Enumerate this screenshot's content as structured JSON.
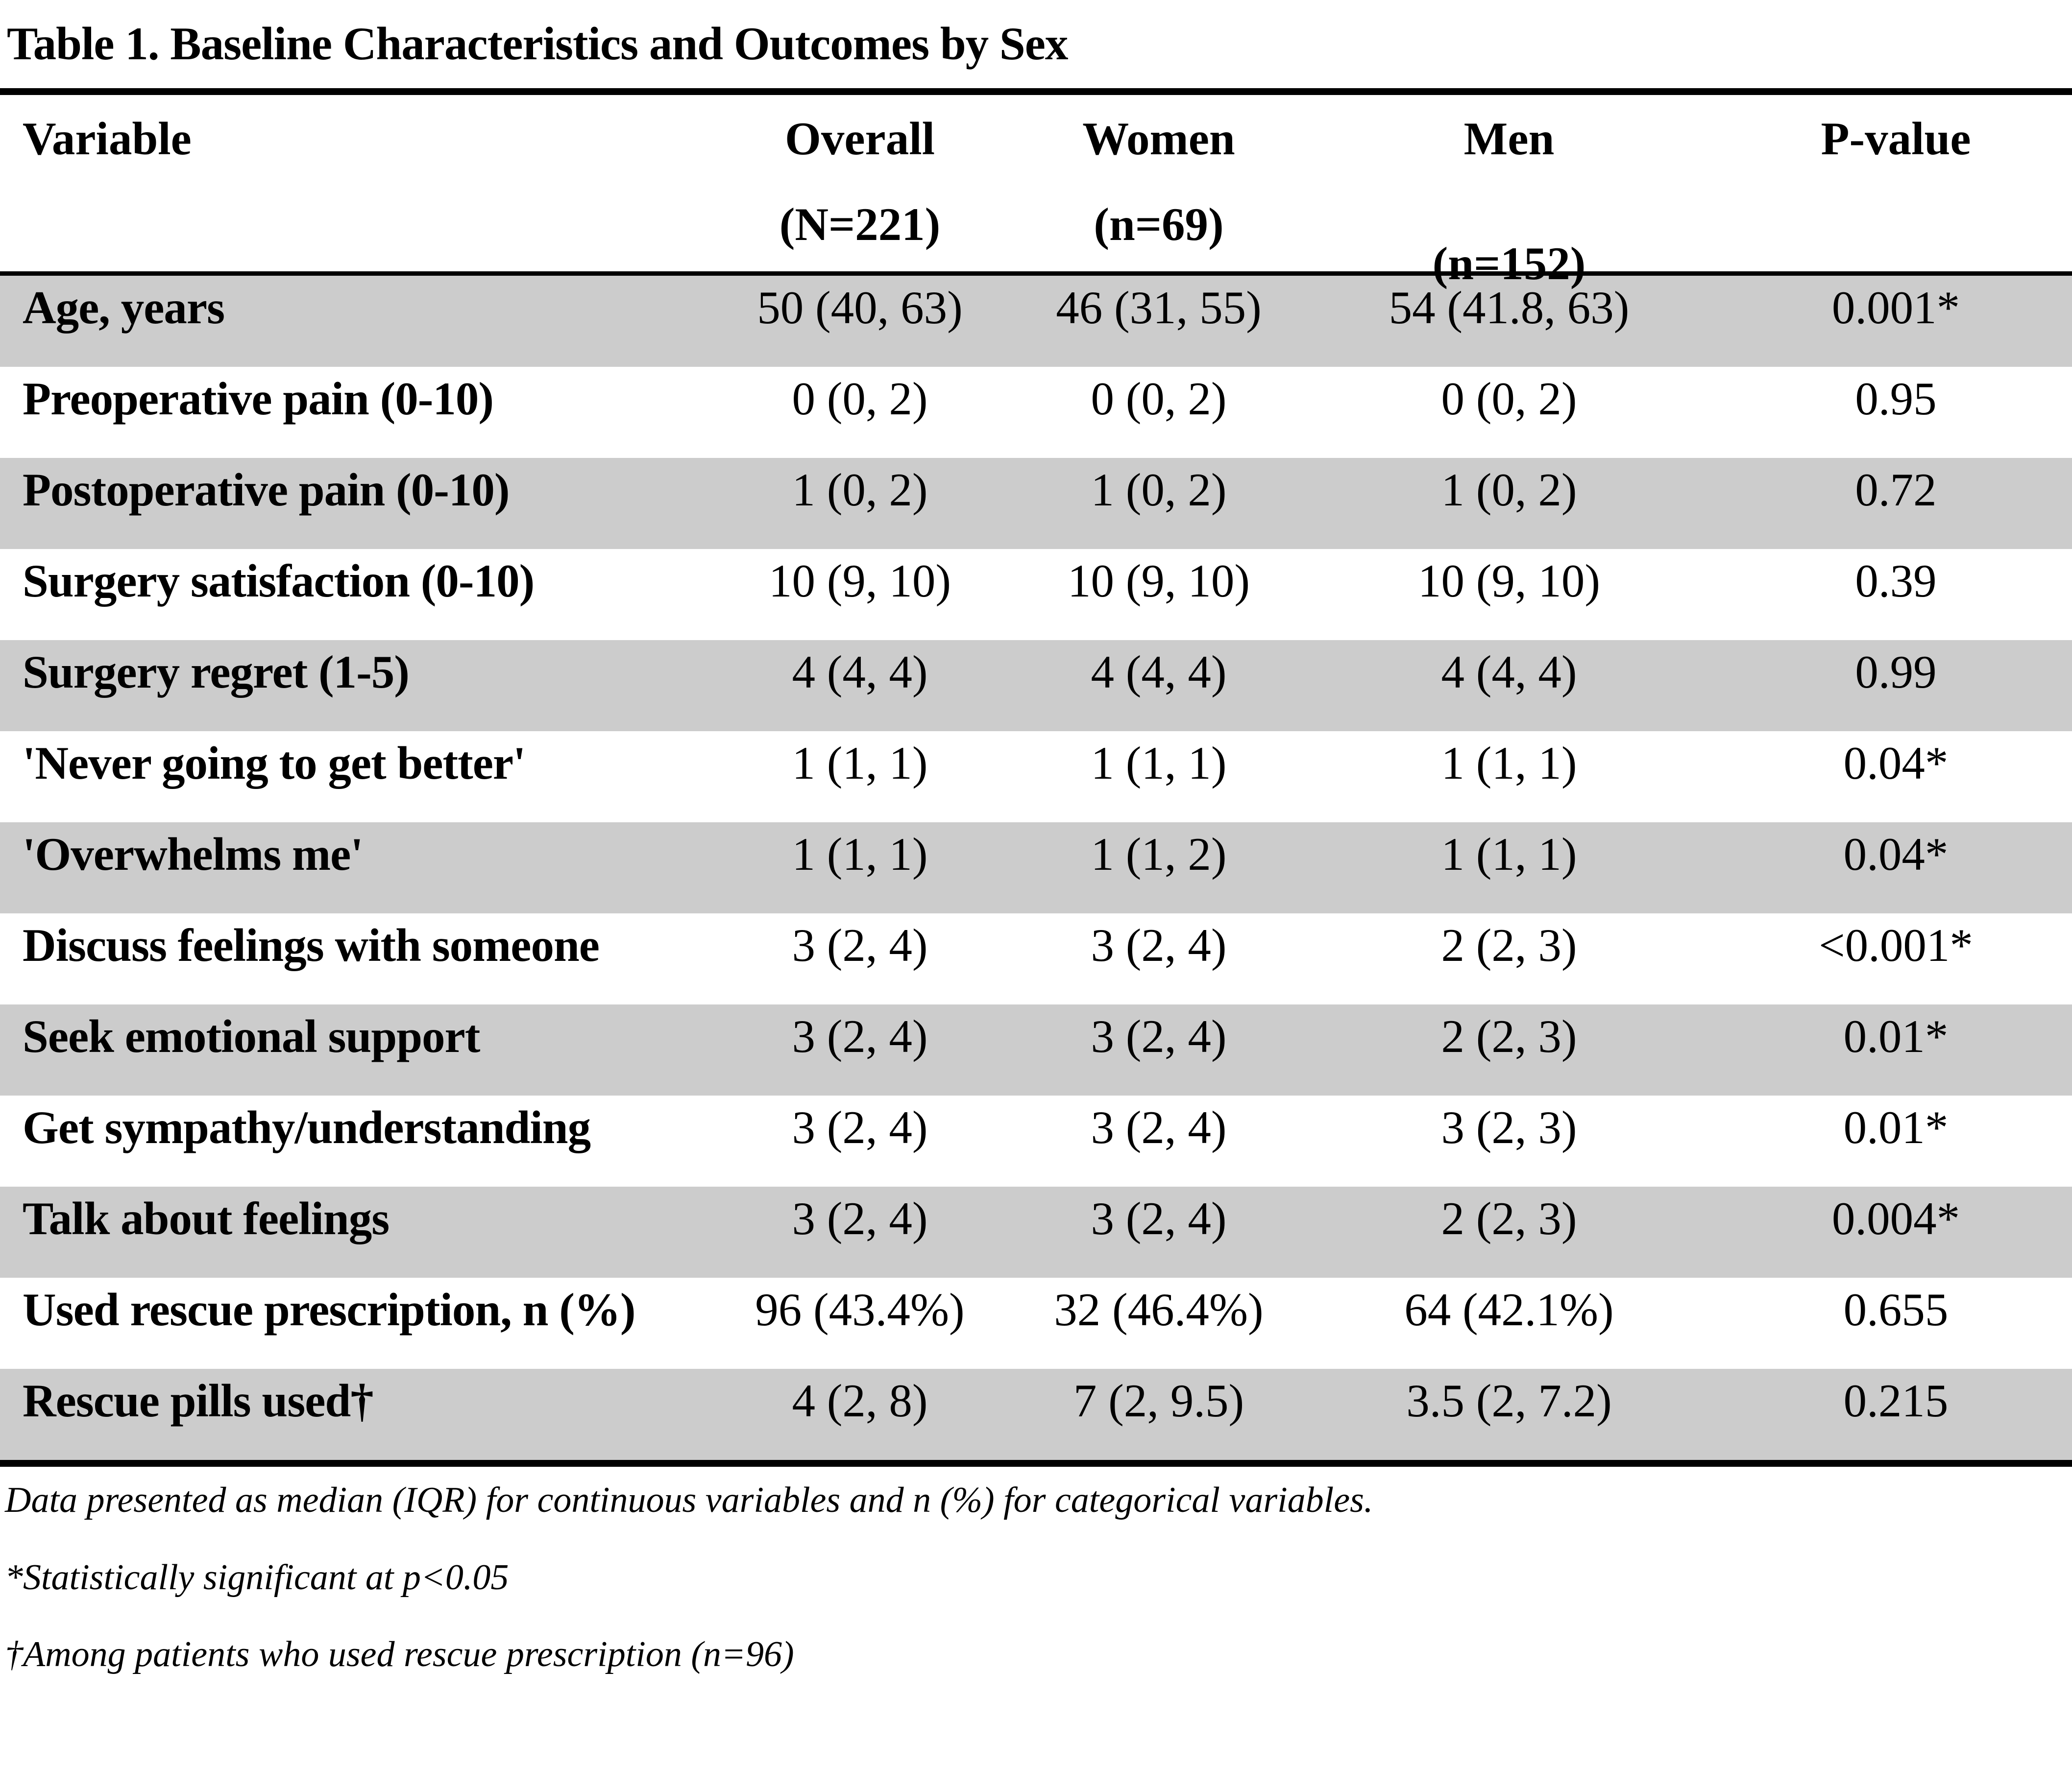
{
  "title": "Table 1. Baseline Characteristics and Outcomes by Sex",
  "table": {
    "header": {
      "variable": "Variable",
      "overall": "Overall",
      "overall_n": "(N=221)",
      "women": "Women",
      "women_n": "(n=69)",
      "men": "Men",
      "men_n": "(n=152)",
      "pvalue": "P-value"
    },
    "rows": [
      {
        "variable": "Age, years",
        "overall": "50 (40, 63)",
        "women": "46 (31, 55)",
        "men": "54 (41.8, 63)",
        "p": "0.001*"
      },
      {
        "variable": "Preoperative pain (0-10)",
        "overall": "0 (0, 2)",
        "women": "0 (0, 2)",
        "men": "0 (0, 2)",
        "p": "0.95"
      },
      {
        "variable": "Postoperative pain (0-10)",
        "overall": "1 (0, 2)",
        "women": "1 (0, 2)",
        "men": "1 (0, 2)",
        "p": "0.72"
      },
      {
        "variable": "Surgery satisfaction (0-10)",
        "overall": "10 (9, 10)",
        "women": "10 (9, 10)",
        "men": "10 (9, 10)",
        "p": "0.39"
      },
      {
        "variable": "Surgery regret (1-5)",
        "overall": "4 (4, 4)",
        "women": "4 (4, 4)",
        "men": "4 (4, 4)",
        "p": "0.99"
      },
      {
        "variable": "'Never going to get better'",
        "overall": "1 (1, 1)",
        "women": "1 (1, 1)",
        "men": "1 (1, 1)",
        "p": "0.04*"
      },
      {
        "variable": "'Overwhelms me'",
        "overall": "1 (1, 1)",
        "women": "1 (1, 2)",
        "men": "1 (1, 1)",
        "p": "0.04*"
      },
      {
        "variable": "Discuss feelings with someone",
        "overall": "3 (2, 4)",
        "women": "3 (2, 4)",
        "men": "2 (2, 3)",
        "p": "<0.001*"
      },
      {
        "variable": "Seek emotional support",
        "overall": "3 (2, 4)",
        "women": "3 (2, 4)",
        "men": "2 (2, 3)",
        "p": "0.01*"
      },
      {
        "variable": "Get sympathy/understanding",
        "overall": "3 (2, 4)",
        "women": "3 (2, 4)",
        "men": "3 (2, 3)",
        "p": "0.01*"
      },
      {
        "variable": "Talk about feelings",
        "overall": "3 (2, 4)",
        "women": "3 (2, 4)",
        "men": "2 (2, 3)",
        "p": "0.004*"
      },
      {
        "variable": "Used rescue prescription, n (%)",
        "overall": "96 (43.4%)",
        "women": "32 (46.4%)",
        "men": "64 (42.1%)",
        "p": "0.655"
      },
      {
        "variable": "Rescue pills used†",
        "overall": "4 (2, 8)",
        "women": "7 (2, 9.5)",
        "men": "3.5 (2, 7.2)",
        "p": "0.215"
      }
    ]
  },
  "footnotes": [
    "Data presented as median (IQR) for continuous variables and n (%) for categorical variables.",
    "*Statistically significant at p<0.05",
    "†Among patients who used rescue prescription (n=96)"
  ],
  "colors": {
    "stripe": "#CCCCCC",
    "rule": "#000000",
    "text": "#000000",
    "background": "#FFFFFF"
  }
}
